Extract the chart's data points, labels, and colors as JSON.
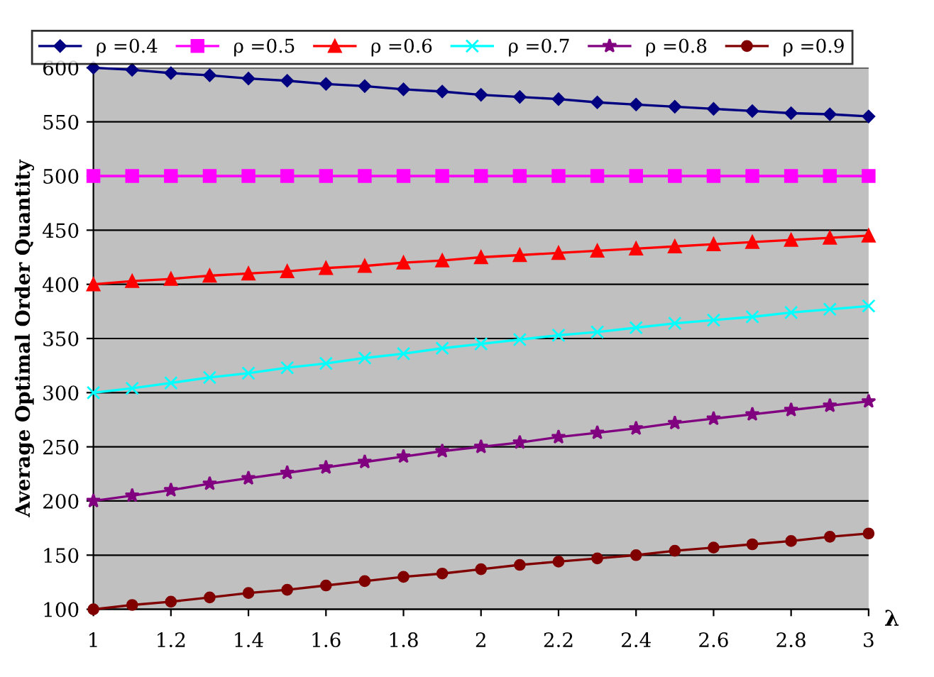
{
  "chart_data": {
    "type": "line",
    "ylabel": "Average Optimal Order Quantity",
    "xlabel": "λ",
    "x": [
      1,
      1.1,
      1.2,
      1.3,
      1.4,
      1.5,
      1.6,
      1.7,
      1.8,
      1.9,
      2,
      2.1,
      2.2,
      2.3,
      2.4,
      2.5,
      2.6,
      2.7,
      2.8,
      2.9,
      3
    ],
    "xlim": [
      1,
      3
    ],
    "xticks": [
      1,
      1.2,
      1.4,
      1.6,
      1.8,
      2,
      2.2,
      2.4,
      2.6,
      2.8,
      3
    ],
    "ylim": [
      100,
      600
    ],
    "yticks": [
      100,
      150,
      200,
      250,
      300,
      350,
      400,
      450,
      500,
      550,
      600
    ],
    "grid": "y",
    "legend": "top",
    "line_style": "solid",
    "series": [
      {
        "name": "ρ =0.4",
        "color": "#000080",
        "marker": "diamond",
        "values": [
          600,
          598,
          595,
          593,
          590,
          588,
          585,
          583,
          580,
          578,
          575,
          573,
          571,
          568,
          566,
          564,
          562,
          560,
          558,
          557,
          555
        ]
      },
      {
        "name": "ρ =0.5",
        "color": "#ff00ff",
        "marker": "square",
        "values": [
          500,
          500,
          500,
          500,
          500,
          500,
          500,
          500,
          500,
          500,
          500,
          500,
          500,
          500,
          500,
          500,
          500,
          500,
          500,
          500,
          500
        ]
      },
      {
        "name": "ρ =0.6",
        "color": "#ff0000",
        "marker": "triangle",
        "values": [
          400,
          403,
          405,
          408,
          410,
          412,
          415,
          417,
          420,
          422,
          425,
          427,
          429,
          431,
          433,
          435,
          437,
          439,
          441,
          443,
          445
        ]
      },
      {
        "name": "ρ =0.7",
        "color": "#00ffff",
        "marker": "cross",
        "values": [
          300,
          304,
          309,
          314,
          318,
          323,
          327,
          332,
          336,
          341,
          345,
          349,
          353,
          356,
          360,
          364,
          367,
          370,
          374,
          377,
          380
        ]
      },
      {
        "name": "ρ =0.8",
        "color": "#800080",
        "marker": "star",
        "values": [
          200,
          205,
          210,
          216,
          221,
          226,
          231,
          236,
          241,
          246,
          250,
          254,
          259,
          263,
          267,
          272,
          276,
          280,
          284,
          288,
          292
        ]
      },
      {
        "name": "ρ =0.9",
        "color": "#800000",
        "marker": "circle",
        "values": [
          100,
          104,
          107,
          111,
          115,
          118,
          122,
          126,
          130,
          133,
          137,
          141,
          144,
          147,
          150,
          154,
          157,
          160,
          163,
          167,
          170
        ]
      }
    ]
  }
}
